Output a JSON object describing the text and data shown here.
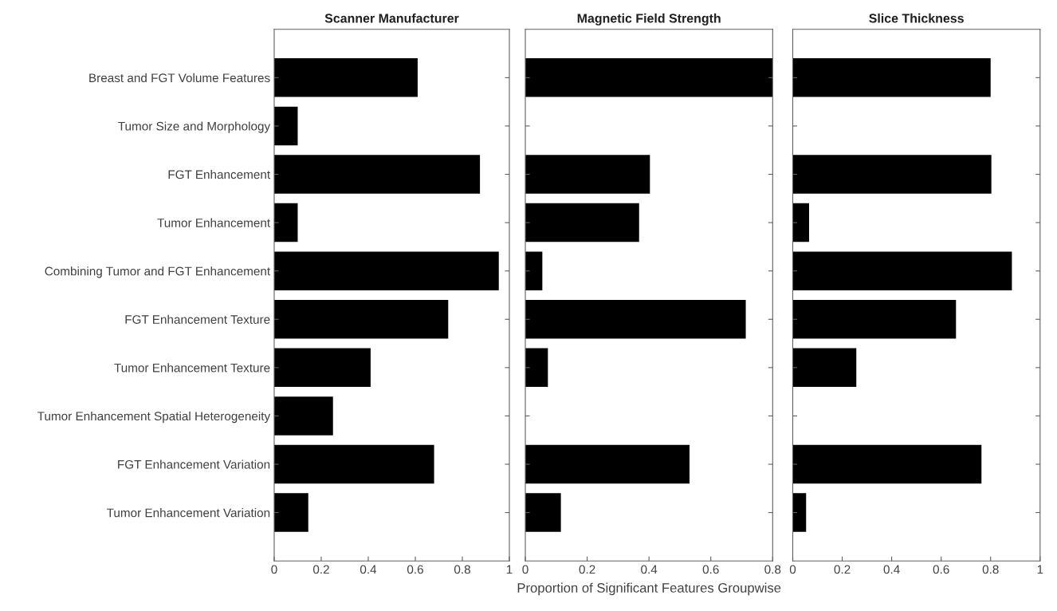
{
  "chart_data": [
    {
      "type": "bar",
      "orientation": "horizontal",
      "title": "Scanner Manufacturer",
      "categories": [
        "Breast and FGT Volume Features",
        "Tumor Size and Morphology",
        "FGT Enhancement",
        "Tumor Enhancement",
        "Combining Tumor and FGT Enhancement",
        "FGT Enhancement Texture",
        "Tumor Enhancement Texture",
        "Tumor Enhancement Spatial Heterogeneity",
        "FGT Enhancement Variation",
        "Tumor Enhancement Variation"
      ],
      "values": [
        0.61,
        0.1,
        0.875,
        0.1,
        0.955,
        0.74,
        0.41,
        0.25,
        0.68,
        0.145
      ],
      "color": "#000000",
      "xlim": [
        0,
        1
      ],
      "xticks": [
        0,
        0.2,
        0.4,
        0.6,
        0.8,
        1
      ],
      "grid": false
    },
    {
      "type": "bar",
      "orientation": "horizontal",
      "title": "Magnetic Field Strength",
      "xlabel": "Proportion of Significant Features Groupwise",
      "categories": [
        null,
        null,
        null,
        null,
        null,
        null,
        null,
        null,
        null,
        null
      ],
      "values": [
        0.8,
        0,
        0.403,
        0.368,
        0.055,
        0.713,
        0.073,
        0,
        0.531,
        0.115
      ],
      "color": "#000000",
      "xlim": [
        0,
        0.8
      ],
      "xticks": [
        0,
        0.2,
        0.4,
        0.6,
        0.8
      ],
      "tick_labels": "x",
      "grid": false
    },
    {
      "type": "bar",
      "orientation": "horizontal",
      "title": "Slice Thickness",
      "categories": [
        null,
        null,
        null,
        null,
        null,
        null,
        null,
        null,
        null,
        null
      ],
      "values": [
        0.8,
        0,
        0.803,
        0.066,
        0.886,
        0.66,
        0.257,
        0,
        0.763,
        0.054
      ],
      "color": "#000000",
      "xlim": [
        0,
        1
      ],
      "xticks": [
        0,
        0.2,
        0.4,
        0.6,
        0.8,
        1
      ],
      "tick_labels": "x",
      "grid": false
    }
  ]
}
